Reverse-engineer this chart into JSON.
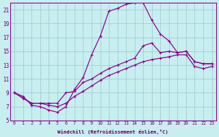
{
  "xlabel": "Windchill (Refroidissement éolien,°C)",
  "xlim": [
    -0.5,
    23.5
  ],
  "ylim": [
    5,
    22
  ],
  "xticks": [
    0,
    1,
    2,
    3,
    4,
    5,
    6,
    7,
    8,
    9,
    10,
    11,
    12,
    13,
    14,
    15,
    16,
    17,
    18,
    19,
    20,
    21,
    22,
    23
  ],
  "yticks": [
    5,
    7,
    9,
    11,
    13,
    15,
    17,
    19,
    21
  ],
  "background_color": "#c8eef0",
  "grid_color": "#a0ccd4",
  "line_color": "#880088",
  "line1_x": [
    0,
    1,
    2,
    3,
    4,
    5,
    6,
    7,
    8,
    9,
    10,
    11,
    12,
    13,
    14,
    15,
    16,
    17,
    18,
    19,
    20,
    21,
    22,
    23
  ],
  "line1_y": [
    9.0,
    8.5,
    7.2,
    7.0,
    6.5,
    6.2,
    7.0,
    9.5,
    11.2,
    14.5,
    17.2,
    20.8,
    21.2,
    21.8,
    22.0,
    22.0,
    19.5,
    17.5,
    16.5,
    14.8,
    15.0,
    13.5,
    13.2,
    13.2
  ],
  "line2_x": [
    0,
    2,
    3,
    4,
    5,
    6,
    7,
    8,
    9,
    10,
    11,
    12,
    13,
    14,
    15,
    16,
    17,
    18,
    19,
    20,
    21,
    22,
    23
  ],
  "line2_y": [
    9.0,
    7.5,
    7.5,
    7.5,
    7.5,
    9.0,
    9.2,
    10.5,
    11.0,
    11.8,
    12.5,
    13.0,
    13.5,
    14.0,
    15.8,
    16.2,
    14.8,
    15.0,
    14.8,
    15.0,
    13.5,
    13.2,
    13.2
  ],
  "line3_x": [
    0,
    1,
    2,
    3,
    4,
    5,
    6,
    7,
    8,
    9,
    10,
    11,
    12,
    13,
    14,
    15,
    16,
    17,
    18,
    19,
    20,
    21,
    22,
    23
  ],
  "line3_y": [
    9.0,
    8.2,
    7.5,
    7.5,
    7.2,
    7.0,
    7.5,
    8.5,
    9.2,
    10.0,
    10.8,
    11.5,
    12.0,
    12.5,
    13.0,
    13.5,
    13.8,
    14.0,
    14.2,
    14.5,
    14.5,
    12.8,
    12.5,
    12.8
  ],
  "marker_size": 2.5,
  "line_width": 0.9,
  "tick_fontsize_x": 4.8,
  "tick_fontsize_y": 5.5,
  "xlabel_fontsize": 5.2
}
